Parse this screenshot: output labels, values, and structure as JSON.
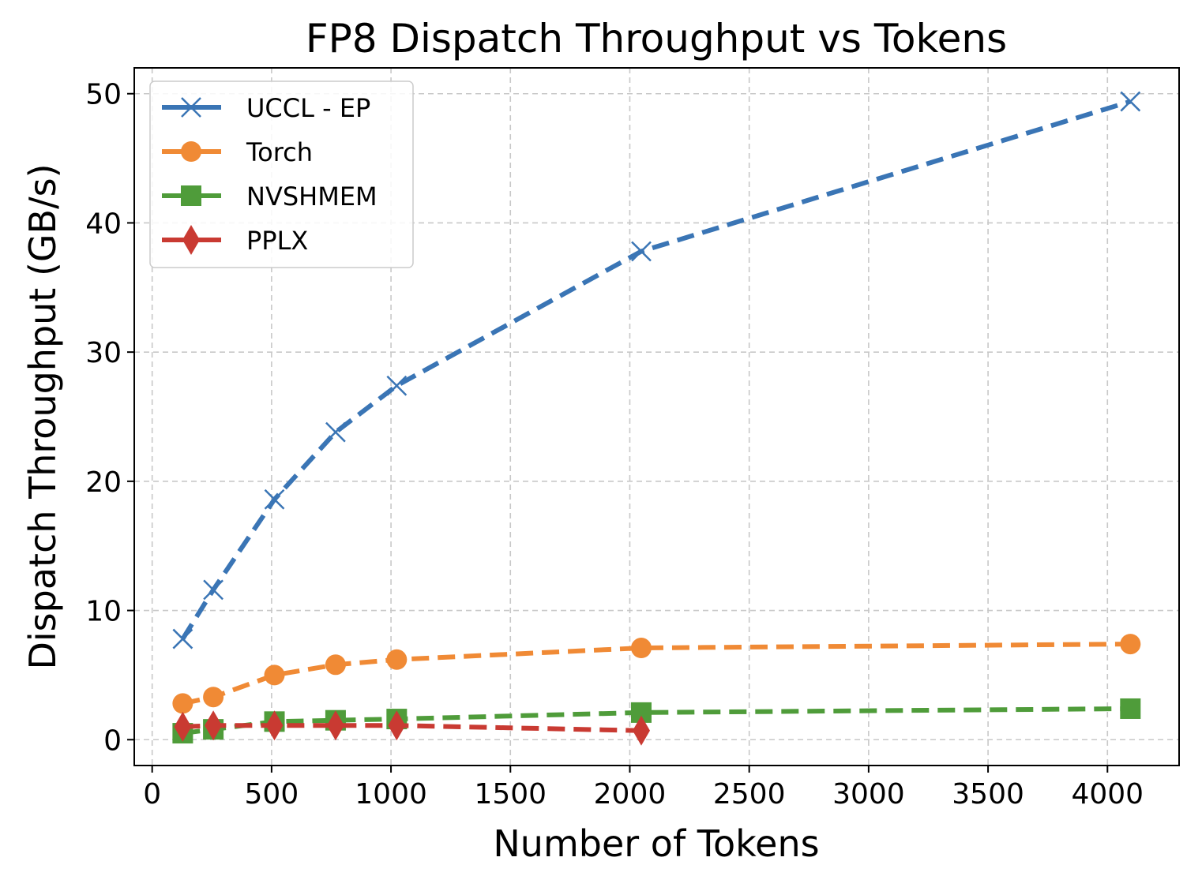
{
  "chart_data": {
    "type": "line",
    "title": "FP8 Dispatch Throughput vs Tokens",
    "xlabel": "Number of Tokens",
    "ylabel": "Dispatch Throughput (GB/s)",
    "xlim": [
      -75,
      4300
    ],
    "ylim": [
      -2,
      52
    ],
    "xticks": [
      0,
      500,
      1000,
      1500,
      2000,
      2500,
      3000,
      3500,
      4000
    ],
    "yticks": [
      0,
      10,
      20,
      30,
      40,
      50
    ],
    "grid": true,
    "legend_position": "upper-left",
    "series": [
      {
        "name": "UCCL - EP",
        "color": "#3a75b5",
        "marker": "x",
        "x": [
          128,
          256,
          512,
          768,
          1024,
          2048,
          4096
        ],
        "y": [
          7.8,
          11.6,
          18.6,
          23.8,
          27.4,
          37.8,
          49.4
        ]
      },
      {
        "name": "Torch",
        "color": "#f08a35",
        "marker": "circle",
        "x": [
          128,
          256,
          512,
          768,
          1024,
          2048,
          4096
        ],
        "y": [
          2.8,
          3.3,
          5.0,
          5.8,
          6.2,
          7.1,
          7.4
        ]
      },
      {
        "name": "NVSHMEM",
        "color": "#4f9c3a",
        "marker": "square",
        "x": [
          128,
          256,
          512,
          768,
          1024,
          2048,
          4096
        ],
        "y": [
          0.5,
          0.8,
          1.4,
          1.5,
          1.6,
          2.1,
          2.4
        ]
      },
      {
        "name": "PPLX",
        "color": "#c93a32",
        "marker": "diamond",
        "x": [
          128,
          256,
          512,
          768,
          1024,
          2048
        ],
        "y": [
          1.0,
          1.1,
          1.1,
          1.1,
          1.1,
          0.7
        ]
      }
    ]
  }
}
